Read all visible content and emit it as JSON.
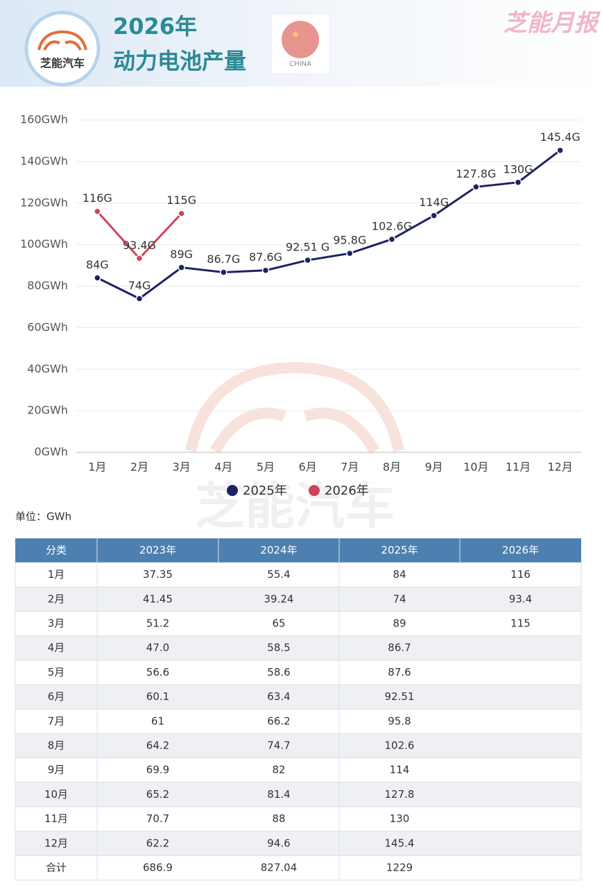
{
  "header": {
    "logo_text": "芝能汽车",
    "title_line1": "2026年",
    "title_line2": "动力电池产量",
    "flag_label": "CHINA",
    "brand": "芝能月报",
    "watermark": "芝能汽车"
  },
  "chart_data": {
    "type": "line",
    "categories": [
      "1月",
      "2月",
      "3月",
      "4月",
      "5月",
      "6月",
      "7月",
      "8月",
      "9月",
      "10月",
      "11月",
      "12月"
    ],
    "series": [
      {
        "name": "2025年",
        "color": "#1c2263",
        "values": [
          84,
          74,
          89,
          86.7,
          87.6,
          92.51,
          95.8,
          102.6,
          114,
          127.8,
          130,
          145.4
        ],
        "value_labels": [
          "84G",
          "74G",
          "89G",
          "86.7G",
          "87.6G",
          "92.51 G",
          "95.8G",
          "102.6G",
          "114G",
          "127.8G",
          "130G",
          "145.4G"
        ]
      },
      {
        "name": "2026年",
        "color": "#cf4359",
        "values": [
          116,
          93.4,
          115,
          null,
          null,
          null,
          null,
          null,
          null,
          null,
          null,
          null
        ],
        "value_labels": [
          "116G",
          "93.4G",
          "115G",
          null,
          null,
          null,
          null,
          null,
          null,
          null,
          null,
          null
        ]
      }
    ],
    "ylim": [
      0,
      160
    ],
    "yticks": [
      {
        "value": 0,
        "label": "0GWh"
      },
      {
        "value": 20,
        "label": "20GWh"
      },
      {
        "value": 40,
        "label": "40GWh"
      },
      {
        "value": 60,
        "label": "60GWh"
      },
      {
        "value": 80,
        "label": "80GWh"
      },
      {
        "value": 100,
        "label": "100GWh"
      },
      {
        "value": 120,
        "label": "120GWh"
      },
      {
        "value": 140,
        "label": "140GWh"
      },
      {
        "value": 160,
        "label": "160GWh"
      }
    ],
    "grid": true,
    "legend": "bottom"
  },
  "unit": "单位：GWh",
  "table": {
    "header": [
      "分类",
      "2023年",
      "2024年",
      "2025年",
      "2026年"
    ],
    "rows": [
      [
        "1月",
        "37.35",
        "55.4",
        "84",
        "116"
      ],
      [
        "2月",
        "41.45",
        "39.24",
        "74",
        "93.4"
      ],
      [
        "3月",
        "51.2",
        "65",
        "89",
        "115"
      ],
      [
        "4月",
        "47.0",
        "58.5",
        "86.7",
        ""
      ],
      [
        "5月",
        "56.6",
        "58.6",
        "87.6",
        ""
      ],
      [
        "6月",
        "60.1",
        "63.4",
        "92.51",
        ""
      ],
      [
        "7月",
        "61",
        "66.2",
        "95.8",
        ""
      ],
      [
        "8月",
        "64.2",
        "74.7",
        "102.6",
        ""
      ],
      [
        "9月",
        "69.9",
        "82",
        "114",
        ""
      ],
      [
        "10月",
        "65.2",
        "81.4",
        "127.8",
        ""
      ],
      [
        "11月",
        "70.7",
        "88",
        "130",
        ""
      ],
      [
        "12月",
        "62.2",
        "94.6",
        "145.4",
        ""
      ],
      [
        "合计",
        "686.9",
        "827.04",
        "1229",
        ""
      ]
    ]
  }
}
